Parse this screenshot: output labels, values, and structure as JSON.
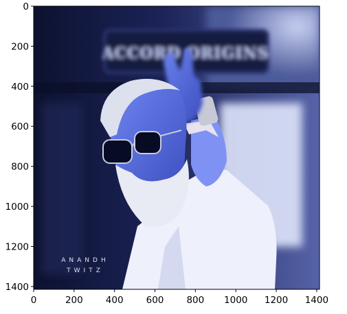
{
  "chart_data": {
    "type": "image",
    "title": "",
    "xlabel": "",
    "ylabel": "",
    "xlim": [
      0,
      1414
    ],
    "ylim": [
      1414,
      0
    ],
    "x_ticks": [
      0,
      200,
      400,
      600,
      800,
      1000,
      1200,
      1400
    ],
    "y_ticks": [
      0,
      200,
      400,
      600,
      800,
      1000,
      1200,
      1400
    ],
    "grid": false,
    "image": {
      "colormap": "blue-tinted",
      "sign_text": "ACCORD ORIGINS",
      "watermark": [
        "ANANDH",
        "TWITZ"
      ]
    }
  }
}
